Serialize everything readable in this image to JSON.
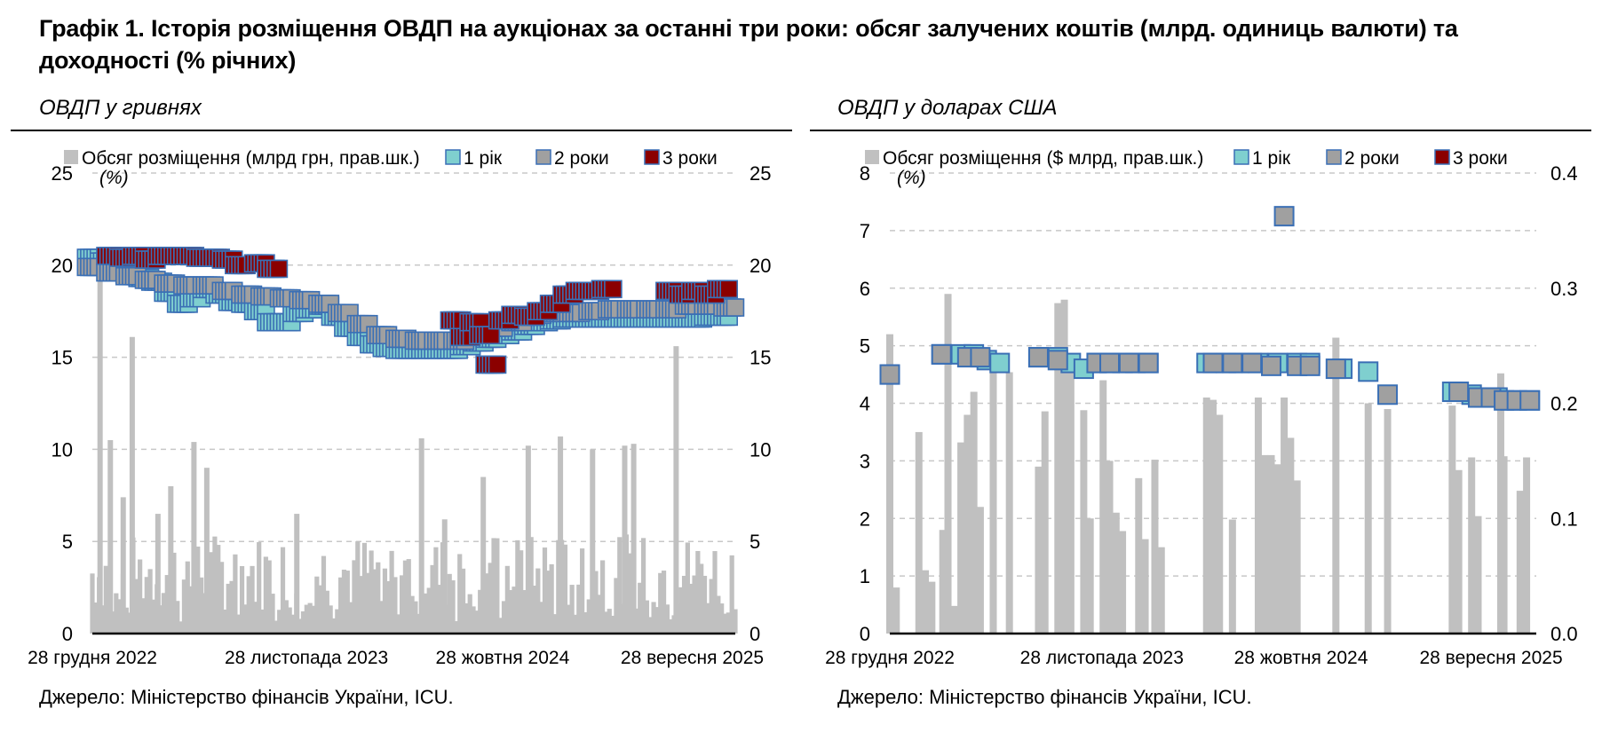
{
  "figure_title": "Графік 1. Історія розміщення ОВДП на аукціонах за останні три роки: обсяг залучених коштів (млрд. одиниць валюти) та доходності (% річних)",
  "colors": {
    "volume": "#c0c0c0",
    "y1": "#7fcfcf",
    "y2": "#a0a0a0",
    "y3": "#8b0000",
    "marker_border": "#3a6fb5",
    "grid": "#c8c8c8"
  },
  "chart_data": [
    {
      "type": "bar",
      "subtitle": "ОВДП у гривнях",
      "unit_label": "(%)",
      "source": "Джерело: Міністерство фінансів України, ICU.",
      "legend": [
        {
          "label": "Обсяг розміщення (млрд грн, прав.шк.)",
          "color": "#c0c0c0"
        },
        {
          "label": "1 рік",
          "color": "#7fcfcf"
        },
        {
          "label": "2 роки",
          "color": "#a0a0a0"
        },
        {
          "label": "3 роки",
          "color": "#8b0000"
        }
      ],
      "x_range": [
        0,
        1
      ],
      "x_ticks": [
        {
          "pos": 0.0,
          "label": "28 грудня 2022"
        },
        {
          "pos": 0.333,
          "label": "28 листопада 2023"
        },
        {
          "pos": 0.638,
          "label": "28 жовтня 2024"
        },
        {
          "pos": 0.933,
          "label": "28 вересня 2025"
        }
      ],
      "ylim_left": [
        0,
        25
      ],
      "yticks_left": [
        "0",
        "5",
        "10",
        "15",
        "20",
        "25"
      ],
      "ylim_right": [
        0,
        25
      ],
      "yticks_right": [
        "0",
        "5",
        "10",
        "15",
        "20",
        "25"
      ],
      "volume_seed": 7,
      "volume_spikes": [
        {
          "x": 0.012,
          "v": 19.8
        },
        {
          "x": 0.062,
          "v": 16.1
        },
        {
          "x": 0.028,
          "v": 10.5
        },
        {
          "x": 0.048,
          "v": 7.4
        },
        {
          "x": 0.102,
          "v": 6.5
        },
        {
          "x": 0.122,
          "v": 8.0
        },
        {
          "x": 0.158,
          "v": 10.4
        },
        {
          "x": 0.178,
          "v": 9.0
        },
        {
          "x": 0.318,
          "v": 6.5
        },
        {
          "x": 0.512,
          "v": 10.6
        },
        {
          "x": 0.548,
          "v": 6.2
        },
        {
          "x": 0.608,
          "v": 8.5
        },
        {
          "x": 0.678,
          "v": 10.2
        },
        {
          "x": 0.728,
          "v": 10.7
        },
        {
          "x": 0.778,
          "v": 10.0
        },
        {
          "x": 0.828,
          "v": 10.2
        },
        {
          "x": 0.842,
          "v": 10.3
        },
        {
          "x": 0.908,
          "v": 15.6
        }
      ],
      "yields": {
        "y1": [
          [
            0.0,
            20.4
          ],
          [
            0.02,
            20.2
          ],
          [
            0.04,
            19.9
          ],
          [
            0.06,
            19.5
          ],
          [
            0.08,
            19.3
          ],
          [
            0.1,
            19.1
          ],
          [
            0.12,
            18.5
          ],
          [
            0.14,
            17.9
          ],
          [
            0.16,
            18.2
          ],
          [
            0.18,
            18.7
          ],
          [
            0.2,
            18.4
          ],
          [
            0.22,
            18.0
          ],
          [
            0.24,
            17.9
          ],
          [
            0.26,
            17.5
          ],
          [
            0.28,
            16.9
          ],
          [
            0.3,
            16.9
          ],
          [
            0.32,
            17.4
          ],
          [
            0.34,
            17.6
          ],
          [
            0.36,
            17.8
          ],
          [
            0.38,
            17.2
          ],
          [
            0.4,
            16.6
          ],
          [
            0.42,
            16.1
          ],
          [
            0.44,
            15.7
          ],
          [
            0.46,
            15.5
          ],
          [
            0.48,
            15.4
          ],
          [
            0.5,
            15.4
          ],
          [
            0.52,
            15.4
          ],
          [
            0.54,
            15.4
          ],
          [
            0.56,
            15.4
          ],
          [
            0.58,
            15.6
          ],
          [
            0.6,
            15.8
          ],
          [
            0.62,
            16.0
          ],
          [
            0.64,
            16.2
          ],
          [
            0.66,
            16.4
          ],
          [
            0.68,
            16.7
          ],
          [
            0.7,
            16.9
          ],
          [
            0.72,
            17.0
          ],
          [
            0.74,
            17.1
          ],
          [
            0.76,
            17.1
          ],
          [
            0.78,
            17.1
          ],
          [
            0.8,
            17.1
          ],
          [
            0.82,
            17.1
          ],
          [
            0.84,
            17.1
          ],
          [
            0.86,
            17.1
          ],
          [
            0.88,
            17.1
          ],
          [
            0.9,
            17.1
          ],
          [
            0.92,
            17.1
          ],
          [
            0.94,
            17.1
          ],
          [
            0.96,
            17.2
          ],
          [
            0.98,
            17.2
          ]
        ],
        "y2": [
          [
            0.0,
            19.9
          ],
          [
            0.03,
            19.6
          ],
          [
            0.06,
            19.4
          ],
          [
            0.09,
            19.2
          ],
          [
            0.12,
            19.0
          ],
          [
            0.15,
            18.9
          ],
          [
            0.18,
            18.9
          ],
          [
            0.21,
            18.6
          ],
          [
            0.24,
            18.4
          ],
          [
            0.27,
            18.3
          ],
          [
            0.3,
            18.2
          ],
          [
            0.33,
            18.1
          ],
          [
            0.36,
            17.9
          ],
          [
            0.39,
            17.4
          ],
          [
            0.42,
            16.8
          ],
          [
            0.45,
            16.2
          ],
          [
            0.48,
            16.0
          ],
          [
            0.51,
            15.9
          ],
          [
            0.54,
            15.9
          ],
          [
            0.57,
            15.9
          ],
          [
            0.6,
            16.2
          ],
          [
            0.63,
            16.6
          ],
          [
            0.66,
            16.9
          ],
          [
            0.69,
            17.3
          ],
          [
            0.72,
            17.4
          ],
          [
            0.75,
            17.4
          ],
          [
            0.78,
            17.5
          ],
          [
            0.81,
            17.6
          ],
          [
            0.84,
            17.6
          ],
          [
            0.87,
            17.6
          ],
          [
            0.9,
            17.6
          ],
          [
            0.93,
            17.8
          ],
          [
            0.96,
            17.8
          ],
          [
            0.99,
            17.7
          ]
        ],
        "y3": [
          [
            0.03,
            20.5
          ],
          [
            0.05,
            20.4
          ],
          [
            0.07,
            20.5
          ],
          [
            0.09,
            20.3
          ],
          [
            0.11,
            20.5
          ],
          [
            0.13,
            20.5
          ],
          [
            0.15,
            20.5
          ],
          [
            0.17,
            20.4
          ],
          [
            0.19,
            20.4
          ],
          [
            0.21,
            20.3
          ],
          [
            0.23,
            20.0
          ],
          [
            0.26,
            20.1
          ],
          [
            0.28,
            19.8
          ],
          [
            0.565,
            17.0
          ],
          [
            0.58,
            16.1
          ],
          [
            0.595,
            16.9
          ],
          [
            0.61,
            16.2
          ],
          [
            0.62,
            14.6
          ],
          [
            0.64,
            17.0
          ],
          [
            0.66,
            17.3
          ],
          [
            0.68,
            17.2
          ],
          [
            0.7,
            17.5
          ],
          [
            0.72,
            17.9
          ],
          [
            0.74,
            18.4
          ],
          [
            0.76,
            18.6
          ],
          [
            0.78,
            18.6
          ],
          [
            0.8,
            18.7
          ],
          [
            0.9,
            18.6
          ],
          [
            0.92,
            18.4
          ],
          [
            0.94,
            18.6
          ],
          [
            0.96,
            18.4
          ],
          [
            0.98,
            18.7
          ]
        ]
      }
    },
    {
      "type": "bar",
      "subtitle": "ОВДП у доларах США",
      "unit_label": "(%)",
      "source": "Джерело: Міністерство фінансів України, ICU.",
      "legend": [
        {
          "label": "Обсяг розміщення ($ млрд, прав.шк.)",
          "color": "#c0c0c0"
        },
        {
          "label": "1 рік",
          "color": "#7fcfcf"
        },
        {
          "label": "2 роки",
          "color": "#a0a0a0"
        },
        {
          "label": "3 роки",
          "color": "#8b0000"
        }
      ],
      "x_range": [
        0,
        1
      ],
      "x_ticks": [
        {
          "pos": 0.0,
          "label": "28 грудня 2022"
        },
        {
          "pos": 0.328,
          "label": "28 листопада 2023"
        },
        {
          "pos": 0.636,
          "label": "28 жовтня 2024"
        },
        {
          "pos": 0.93,
          "label": "28 вересня 2025"
        }
      ],
      "ylim_left": [
        0,
        8
      ],
      "yticks_left": [
        "0",
        "1",
        "2",
        "3",
        "4",
        "5",
        "6",
        "7",
        "8"
      ],
      "ylim_right": [
        0,
        0.4
      ],
      "yticks_right": [
        "0.0",
        "0.1",
        "0.2",
        "0.3",
        "0.4"
      ],
      "volumes": [
        [
          0.0,
          0.26
        ],
        [
          0.01,
          0.04
        ],
        [
          0.045,
          0.175
        ],
        [
          0.055,
          0.055
        ],
        [
          0.065,
          0.045
        ],
        [
          0.075,
          0.0
        ],
        [
          0.082,
          0.09
        ],
        [
          0.09,
          0.295
        ],
        [
          0.1,
          0.024
        ],
        [
          0.11,
          0.166
        ],
        [
          0.12,
          0.19
        ],
        [
          0.13,
          0.21
        ],
        [
          0.14,
          0.11
        ],
        [
          0.15,
          0.0
        ],
        [
          0.16,
          0.227
        ],
        [
          0.17,
          0.0
        ],
        [
          0.185,
          0.227
        ],
        [
          0.23,
          0.145
        ],
        [
          0.24,
          0.193
        ],
        [
          0.255,
          0.0
        ],
        [
          0.26,
          0.287
        ],
        [
          0.27,
          0.29
        ],
        [
          0.28,
          0.243
        ],
        [
          0.29,
          0.0
        ],
        [
          0.3,
          0.194
        ],
        [
          0.31,
          0.1
        ],
        [
          0.32,
          0.0
        ],
        [
          0.33,
          0.22
        ],
        [
          0.34,
          0.15
        ],
        [
          0.35,
          0.105
        ],
        [
          0.36,
          0.089
        ],
        [
          0.375,
          0.0
        ],
        [
          0.385,
          0.135
        ],
        [
          0.395,
          0.082
        ],
        [
          0.41,
          0.151
        ],
        [
          0.42,
          0.075
        ],
        [
          0.49,
          0.205
        ],
        [
          0.5,
          0.203
        ],
        [
          0.51,
          0.19
        ],
        [
          0.53,
          0.099
        ],
        [
          0.57,
          0.205
        ],
        [
          0.58,
          0.155
        ],
        [
          0.59,
          0.155
        ],
        [
          0.6,
          0.147
        ],
        [
          0.61,
          0.205
        ],
        [
          0.62,
          0.17
        ],
        [
          0.63,
          0.133
        ],
        [
          0.635,
          0.0
        ],
        [
          0.69,
          0.257
        ],
        [
          0.74,
          0.2
        ],
        [
          0.77,
          0.195
        ],
        [
          0.87,
          0.198
        ],
        [
          0.88,
          0.142
        ],
        [
          0.89,
          0.0
        ],
        [
          0.9,
          0.153
        ],
        [
          0.91,
          0.102
        ],
        [
          0.935,
          0.0
        ],
        [
          0.945,
          0.226
        ],
        [
          0.95,
          0.154
        ],
        [
          0.96,
          0.0
        ],
        [
          0.975,
          0.124
        ],
        [
          0.985,
          0.153
        ]
      ],
      "yields": {
        "y1": [
          [
            0.0,
            4.5
          ],
          [
            0.08,
            4.85
          ],
          [
            0.11,
            4.85
          ],
          [
            0.13,
            4.85
          ],
          [
            0.15,
            4.75
          ],
          [
            0.17,
            4.7
          ],
          [
            0.23,
            4.8
          ],
          [
            0.26,
            4.8
          ],
          [
            0.28,
            4.7
          ],
          [
            0.3,
            4.6
          ],
          [
            0.32,
            4.7
          ],
          [
            0.34,
            4.7
          ],
          [
            0.36,
            4.7
          ],
          [
            0.38,
            4.7
          ],
          [
            0.4,
            4.7
          ],
          [
            0.49,
            4.7
          ],
          [
            0.52,
            4.7
          ],
          [
            0.54,
            4.7
          ],
          [
            0.57,
            4.7
          ],
          [
            0.6,
            4.7
          ],
          [
            0.63,
            4.7
          ],
          [
            0.65,
            4.7
          ],
          [
            0.7,
            4.6
          ],
          [
            0.74,
            4.55
          ],
          [
            0.87,
            4.2
          ],
          [
            0.9,
            4.15
          ],
          [
            0.92,
            4.1
          ],
          [
            0.94,
            4.1
          ],
          [
            0.96,
            4.05
          ],
          [
            0.99,
            4.05
          ]
        ],
        "y2": [
          [
            0.0,
            4.5
          ],
          [
            0.08,
            4.85
          ],
          [
            0.12,
            4.8
          ],
          [
            0.14,
            4.8
          ],
          [
            0.23,
            4.8
          ],
          [
            0.26,
            4.75
          ],
          [
            0.32,
            4.7
          ],
          [
            0.34,
            4.7
          ],
          [
            0.37,
            4.7
          ],
          [
            0.4,
            4.7
          ],
          [
            0.5,
            4.7
          ],
          [
            0.53,
            4.7
          ],
          [
            0.56,
            4.7
          ],
          [
            0.59,
            4.65
          ],
          [
            0.61,
            7.25
          ],
          [
            0.63,
            4.65
          ],
          [
            0.65,
            4.65
          ],
          [
            0.69,
            4.6
          ],
          [
            0.77,
            4.15
          ],
          [
            0.88,
            4.2
          ],
          [
            0.91,
            4.1
          ],
          [
            0.93,
            4.1
          ],
          [
            0.95,
            4.05
          ],
          [
            0.97,
            4.05
          ],
          [
            0.99,
            4.05
          ]
        ],
        "y3": []
      }
    }
  ]
}
